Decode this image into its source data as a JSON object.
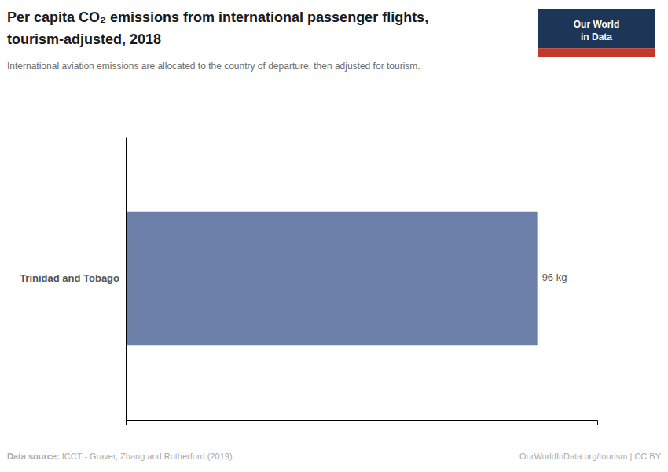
{
  "chart_data": {
    "type": "bar",
    "orientation": "horizontal",
    "title": [
      "Per capita CO₂ emissions from international passenger flights,",
      "tourism-adjusted, 2018"
    ],
    "subtitle": "International aviation emissions are allocated to the country of departure, then adjusted for tourism.",
    "categories": [
      "Trinidad and Tobago"
    ],
    "values": [
      96
    ],
    "value_labels": [
      "96 kg"
    ],
    "data_labels": true,
    "color": "#6b7fa8",
    "xlim": [
      0,
      110
    ],
    "xticks": [],
    "tick_labels": "y",
    "grid": false,
    "source": "Data source: ICCT - Graver, Zhang and Rutherford (2019)",
    "footer": "OurWorldInData.org/tourism | CC BY",
    "logo": [
      "Our World",
      "in Data"
    ]
  }
}
